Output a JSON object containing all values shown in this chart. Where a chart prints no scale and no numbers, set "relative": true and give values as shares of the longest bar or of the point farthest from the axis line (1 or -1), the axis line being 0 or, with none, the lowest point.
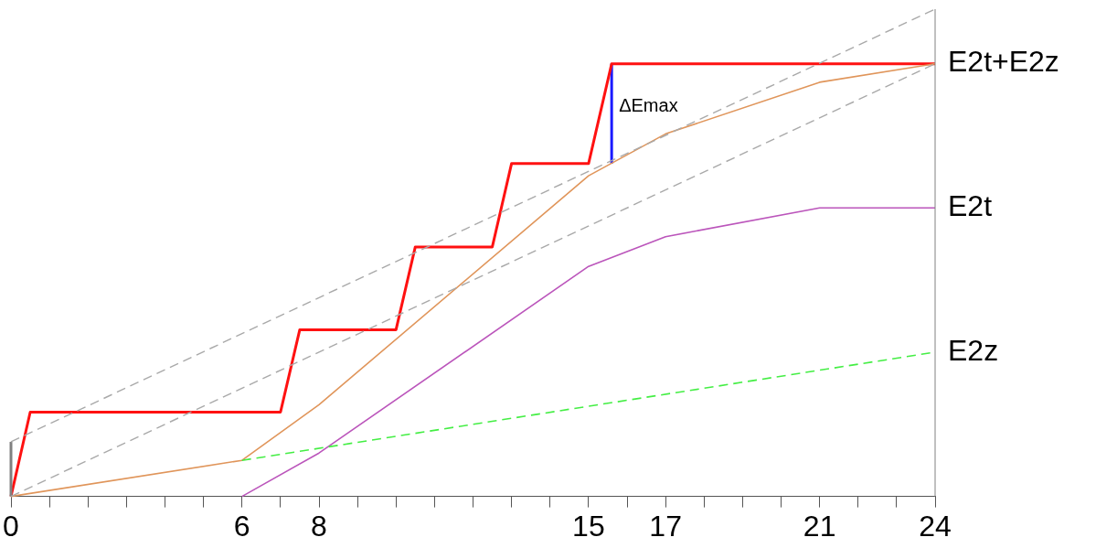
{
  "chart_data": {
    "type": "line",
    "relative": true,
    "legend": false,
    "grid": false,
    "marker": "none",
    "xlim": [
      0,
      24
    ],
    "xticks": [
      0,
      {
        "value": 1,
        "label": null
      },
      {
        "value": 2,
        "label": null
      },
      {
        "value": 3,
        "label": null
      },
      {
        "value": 4,
        "label": null
      },
      {
        "value": 5,
        "label": null
      },
      6,
      {
        "value": 7,
        "label": null
      },
      8,
      {
        "value": 9,
        "label": null
      },
      {
        "value": 10,
        "label": null
      },
      {
        "value": 11,
        "label": null
      },
      {
        "value": 12,
        "label": null
      },
      {
        "value": 13,
        "label": null
      },
      {
        "value": 14,
        "label": null
      },
      15,
      {
        "value": 16,
        "label": null
      },
      17,
      {
        "value": 18,
        "label": null
      },
      {
        "value": 19,
        "label": null
      },
      {
        "value": 20,
        "label": null
      },
      21,
      {
        "value": 22,
        "label": null
      },
      {
        "value": 23,
        "label": null
      },
      24
    ],
    "annotations": [
      {
        "text": "ΔEmax",
        "x": 15.6,
        "y": 0.8
      }
    ],
    "series": [
      {
        "color": "#a9a9a9",
        "line_style": "dashed",
        "x": [
          0,
          24
        ],
        "values": [
          0.112,
          1
        ]
      },
      {
        "color": "#a9a9a9",
        "line_style": "dashed",
        "x": [
          0,
          24
        ],
        "values": [
          0,
          0.888
        ]
      },
      {
        "color": "#808080",
        "line_style": "solid",
        "x": [
          0,
          0
        ],
        "values": [
          0,
          0.112
        ]
      },
      {
        "name": "E2z",
        "color": "#44ee44",
        "line_style": "dashed",
        "x": [
          6,
          24
        ],
        "values": [
          0.074,
          0.296
        ]
      },
      {
        "name": "E2t",
        "color": "#bb55bb",
        "line_style": "solid",
        "x": [
          6,
          8,
          15,
          17,
          21,
          24
        ],
        "values": [
          0,
          0.089,
          0.472,
          0.533,
          0.592,
          0.592
        ]
      },
      {
        "name": "E2t+E2z",
        "color": "#e0955a",
        "line_style": "solid",
        "x": [
          0,
          6,
          8,
          15,
          17,
          21,
          24
        ],
        "values": [
          0,
          0.074,
          0.188,
          0.658,
          0.744,
          0.85,
          0.888
        ]
      },
      {
        "color": "#ff1111",
        "line_style": "solid",
        "x": [
          0,
          0.5,
          7,
          7.5,
          10,
          10.5,
          12.5,
          13,
          15,
          15.6,
          24
        ],
        "values": [
          0,
          0.173,
          0.173,
          0.342,
          0.342,
          0.512,
          0.512,
          0.683,
          0.683,
          0.888,
          0.888
        ]
      },
      {
        "color": "#1a1aff",
        "line_style": "solid",
        "x": [
          15.6,
          15.6
        ],
        "values": [
          0.683,
          0.888
        ]
      }
    ]
  }
}
